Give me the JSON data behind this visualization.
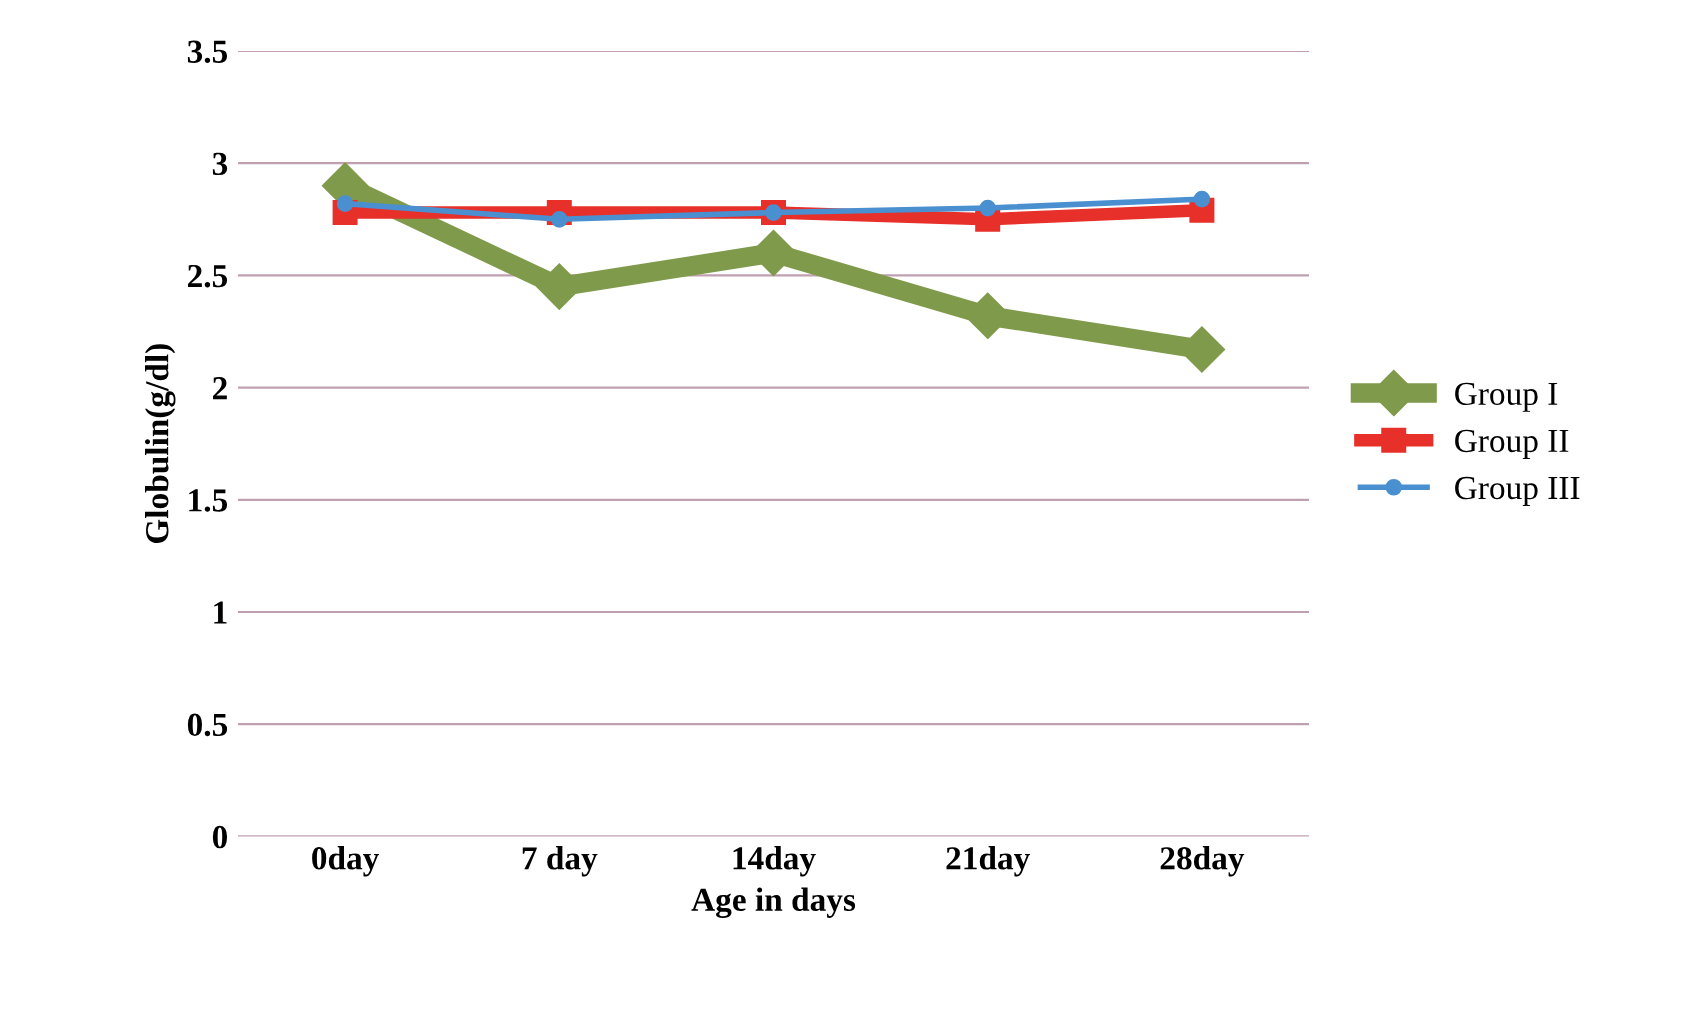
{
  "chart_data": {
    "type": "line",
    "xlabel": "Age in days",
    "ylabel": "Globulin(g/dl)",
    "categories": [
      "0day",
      "7 day",
      "14day",
      "21day",
      "28day"
    ],
    "series": [
      {
        "name": "Group I",
        "color": "#7f9a4a",
        "marker": "diamond",
        "values": [
          2.9,
          2.45,
          2.6,
          2.32,
          2.17
        ]
      },
      {
        "name": "Group II",
        "color": "#e8302a",
        "marker": "square",
        "values": [
          2.78,
          2.78,
          2.78,
          2.75,
          2.79
        ]
      },
      {
        "name": "Group III",
        "color": "#4a90d0",
        "marker": "circle",
        "values": [
          2.82,
          2.75,
          2.78,
          2.8,
          2.84
        ]
      }
    ],
    "ylim": [
      0,
      3.5
    ],
    "yticks": [
      0,
      0.5,
      1,
      1.5,
      2,
      2.5,
      3,
      3.5
    ],
    "grid": "y",
    "legend": "right"
  }
}
